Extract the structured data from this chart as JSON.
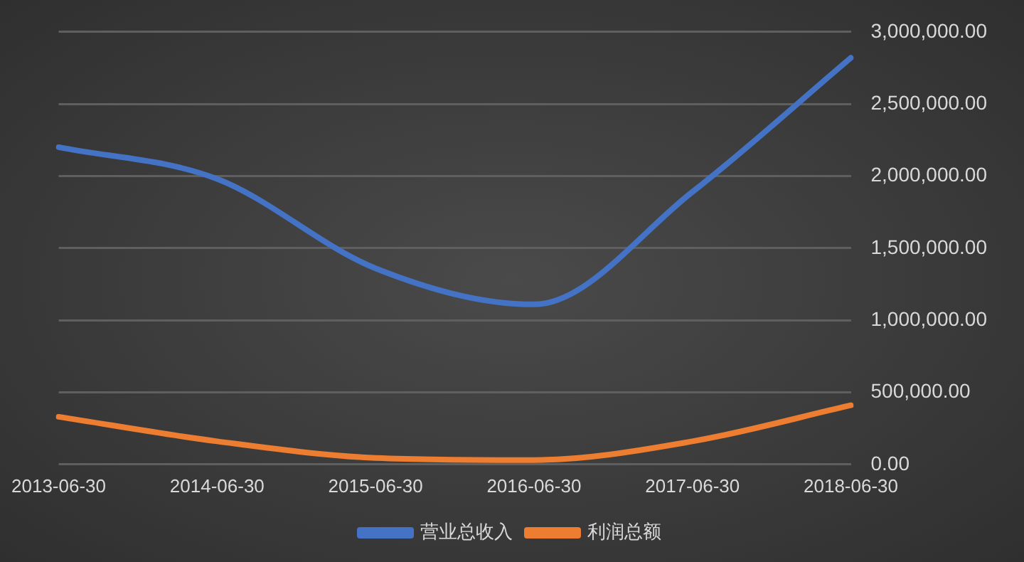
{
  "chart_data": {
    "type": "line",
    "categories": [
      "2013-06-30",
      "2014-06-30",
      "2015-06-30",
      "2016-06-30",
      "2017-06-30",
      "2018-06-30"
    ],
    "series": [
      {
        "name": "营业总收入",
        "color": "#4472c4",
        "values": [
          2200000,
          1980000,
          1360000,
          1110000,
          1890000,
          2820000
        ]
      },
      {
        "name": "利润总额",
        "color": "#ed7d31",
        "values": [
          330000,
          160000,
          45000,
          30000,
          160000,
          410000
        ]
      }
    ],
    "ylim": [
      0,
      3000000
    ],
    "yticks": [
      {
        "value": 0,
        "label": "0.00"
      },
      {
        "value": 500000,
        "label": "500,000.00"
      },
      {
        "value": 1000000,
        "label": "1,000,000.00"
      },
      {
        "value": 1500000,
        "label": "1,500,000.00"
      },
      {
        "value": 2000000,
        "label": "2,000,000.00"
      },
      {
        "value": 2500000,
        "label": "2,500,000.00"
      },
      {
        "value": 3000000,
        "label": "3,000,000.00"
      }
    ],
    "grid": "y",
    "legend": "bottom",
    "marker": "none",
    "line_style": "solid"
  }
}
